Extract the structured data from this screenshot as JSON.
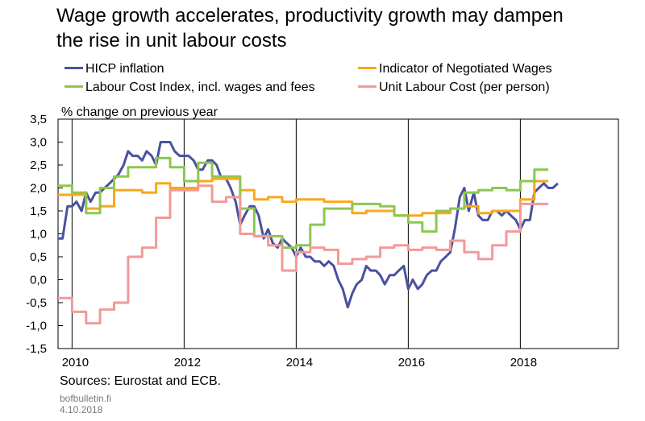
{
  "header": {
    "title_line1": "Wage growth accelerates, productivity growth may dampen",
    "title_line2": "the rise in unit labour costs"
  },
  "legend": [
    {
      "label": "HICP inflation",
      "color": "#4a51a0"
    },
    {
      "label": "Indicator of Negotiated Wages",
      "color": "#f8a81c"
    },
    {
      "label": "Labour Cost Index, incl. wages and fees",
      "color": "#8cc751"
    },
    {
      "label": "Unit Labour Cost (per person)",
      "color": "#f29a98"
    }
  ],
  "footer": {
    "source": "Sources: Eurostat and ECB.",
    "site": "bofbulletin.fi",
    "date": "4.10.2018"
  },
  "chart_data": {
    "type": "line",
    "ylabel": "% change on previous year",
    "xlim": [
      2009.75,
      2019.75
    ],
    "ylim": [
      -1.5,
      3.5
    ],
    "yticks": [
      "-1,5",
      "-1,0",
      "-0,5",
      "0,0",
      "0,5",
      "1,0",
      "1,5",
      "2,0",
      "2,5",
      "3,0",
      "3,5"
    ],
    "xticks": [
      "2010",
      "2012",
      "2014",
      "2016",
      "2018"
    ],
    "grid": {
      "vertical": true,
      "horizontal": false
    },
    "series": [
      {
        "name": "HICP inflation",
        "color": "#4a51a0",
        "step": false,
        "x": [
          2009.75,
          2009.83,
          2009.92,
          2010.0,
          2010.08,
          2010.17,
          2010.25,
          2010.33,
          2010.42,
          2010.5,
          2010.58,
          2010.67,
          2010.75,
          2010.83,
          2010.92,
          2011.0,
          2011.08,
          2011.17,
          2011.25,
          2011.33,
          2011.42,
          2011.5,
          2011.58,
          2011.67,
          2011.75,
          2011.83,
          2011.92,
          2012.0,
          2012.08,
          2012.17,
          2012.25,
          2012.33,
          2012.42,
          2012.5,
          2012.58,
          2012.67,
          2012.75,
          2012.83,
          2012.92,
          2013.0,
          2013.08,
          2013.17,
          2013.25,
          2013.33,
          2013.42,
          2013.5,
          2013.58,
          2013.67,
          2013.75,
          2013.83,
          2013.92,
          2014.0,
          2014.08,
          2014.17,
          2014.25,
          2014.33,
          2014.42,
          2014.5,
          2014.58,
          2014.67,
          2014.75,
          2014.83,
          2014.92,
          2015.0,
          2015.08,
          2015.17,
          2015.25,
          2015.33,
          2015.42,
          2015.5,
          2015.58,
          2015.67,
          2015.75,
          2015.83,
          2015.92,
          2016.0,
          2016.08,
          2016.17,
          2016.25,
          2016.33,
          2016.42,
          2016.5,
          2016.58,
          2016.67,
          2016.75,
          2016.83,
          2016.92,
          2017.0,
          2017.08,
          2017.17,
          2017.25,
          2017.33,
          2017.42,
          2017.5,
          2017.58,
          2017.67,
          2017.75,
          2017.83,
          2017.92,
          2018.0,
          2018.08,
          2018.17,
          2018.25,
          2018.33,
          2018.42,
          2018.5,
          2018.58,
          2018.67
        ],
        "y": [
          0.9,
          0.9,
          1.6,
          1.6,
          1.7,
          1.5,
          1.9,
          1.7,
          1.9,
          1.9,
          2.0,
          2.1,
          2.2,
          2.3,
          2.5,
          2.8,
          2.7,
          2.7,
          2.6,
          2.8,
          2.7,
          2.5,
          3.0,
          3.0,
          3.0,
          2.8,
          2.7,
          2.7,
          2.7,
          2.6,
          2.4,
          2.4,
          2.6,
          2.6,
          2.5,
          2.2,
          2.2,
          2.0,
          1.7,
          1.2,
          1.4,
          1.6,
          1.6,
          1.4,
          0.9,
          1.1,
          0.8,
          0.7,
          0.9,
          0.8,
          0.7,
          0.5,
          0.7,
          0.5,
          0.5,
          0.4,
          0.4,
          0.3,
          0.4,
          0.3,
          0.0,
          -0.2,
          -0.6,
          -0.3,
          -0.1,
          0.0,
          0.3,
          0.2,
          0.2,
          0.1,
          -0.1,
          0.1,
          0.1,
          0.2,
          0.3,
          -0.2,
          0.0,
          -0.2,
          -0.1,
          0.1,
          0.2,
          0.2,
          0.4,
          0.5,
          0.6,
          1.1,
          1.8,
          2.0,
          1.5,
          1.9,
          1.4,
          1.3,
          1.3,
          1.5,
          1.5,
          1.4,
          1.5,
          1.4,
          1.3,
          1.1,
          1.3,
          1.3,
          1.9,
          2.0,
          2.1,
          2.0,
          2.0,
          2.1
        ]
      },
      {
        "name": "Indicator of Negotiated Wages",
        "color": "#f8a81c",
        "step": true,
        "x": [
          2009.75,
          2010.0,
          2010.25,
          2010.5,
          2010.75,
          2011.0,
          2011.25,
          2011.5,
          2011.75,
          2012.0,
          2012.25,
          2012.5,
          2012.75,
          2013.0,
          2013.25,
          2013.5,
          2013.75,
          2014.0,
          2014.25,
          2014.5,
          2014.75,
          2015.0,
          2015.25,
          2015.5,
          2015.75,
          2016.0,
          2016.25,
          2016.5,
          2016.75,
          2017.0,
          2017.25,
          2017.5,
          2017.75,
          2018.0,
          2018.25
        ],
        "y": [
          1.85,
          1.85,
          1.55,
          1.6,
          1.95,
          1.95,
          1.9,
          2.1,
          2.0,
          2.0,
          2.15,
          2.2,
          2.2,
          1.95,
          1.75,
          1.8,
          1.7,
          1.75,
          1.75,
          1.7,
          1.7,
          1.45,
          1.5,
          1.5,
          1.4,
          1.4,
          1.45,
          1.45,
          1.55,
          1.6,
          1.45,
          1.5,
          1.5,
          1.75,
          2.15
        ]
      },
      {
        "name": "Labour Cost Index, incl. wages and fees",
        "color": "#8cc751",
        "step": true,
        "x": [
          2009.75,
          2010.0,
          2010.25,
          2010.5,
          2010.75,
          2011.0,
          2011.25,
          2011.5,
          2011.75,
          2012.0,
          2012.25,
          2012.5,
          2012.75,
          2013.0,
          2013.25,
          2013.5,
          2013.75,
          2014.0,
          2014.25,
          2014.5,
          2014.75,
          2015.0,
          2015.25,
          2015.5,
          2015.75,
          2016.0,
          2016.25,
          2016.5,
          2016.75,
          2017.0,
          2017.25,
          2017.5,
          2017.75,
          2018.0,
          2018.25
        ],
        "y": [
          2.05,
          1.9,
          1.45,
          2.0,
          2.25,
          2.45,
          2.45,
          2.65,
          2.45,
          2.15,
          2.55,
          2.25,
          2.25,
          1.55,
          0.95,
          0.95,
          0.7,
          0.75,
          1.2,
          1.55,
          1.55,
          1.65,
          1.65,
          1.6,
          1.4,
          1.25,
          1.05,
          1.5,
          1.55,
          1.9,
          1.95,
          2.0,
          1.95,
          2.15,
          2.4
        ]
      },
      {
        "name": "Unit Labour Cost (per person)",
        "color": "#f29a98",
        "step": true,
        "x": [
          2009.75,
          2010.0,
          2010.25,
          2010.5,
          2010.75,
          2011.0,
          2011.25,
          2011.5,
          2011.75,
          2012.0,
          2012.25,
          2012.5,
          2012.75,
          2013.0,
          2013.25,
          2013.5,
          2013.75,
          2014.0,
          2014.25,
          2014.5,
          2014.75,
          2015.0,
          2015.25,
          2015.5,
          2015.75,
          2016.0,
          2016.25,
          2016.5,
          2016.75,
          2017.0,
          2017.25,
          2017.5,
          2017.75,
          2018.0,
          2018.25
        ],
        "y": [
          -0.4,
          -0.7,
          -0.95,
          -0.65,
          -0.5,
          0.5,
          0.7,
          1.35,
          1.95,
          1.95,
          2.05,
          1.7,
          1.8,
          1.0,
          0.95,
          0.75,
          0.2,
          0.6,
          0.7,
          0.65,
          0.35,
          0.45,
          0.5,
          0.7,
          0.75,
          0.65,
          0.7,
          0.65,
          0.85,
          0.6,
          0.45,
          0.75,
          1.05,
          1.65,
          1.65
        ]
      }
    ]
  }
}
